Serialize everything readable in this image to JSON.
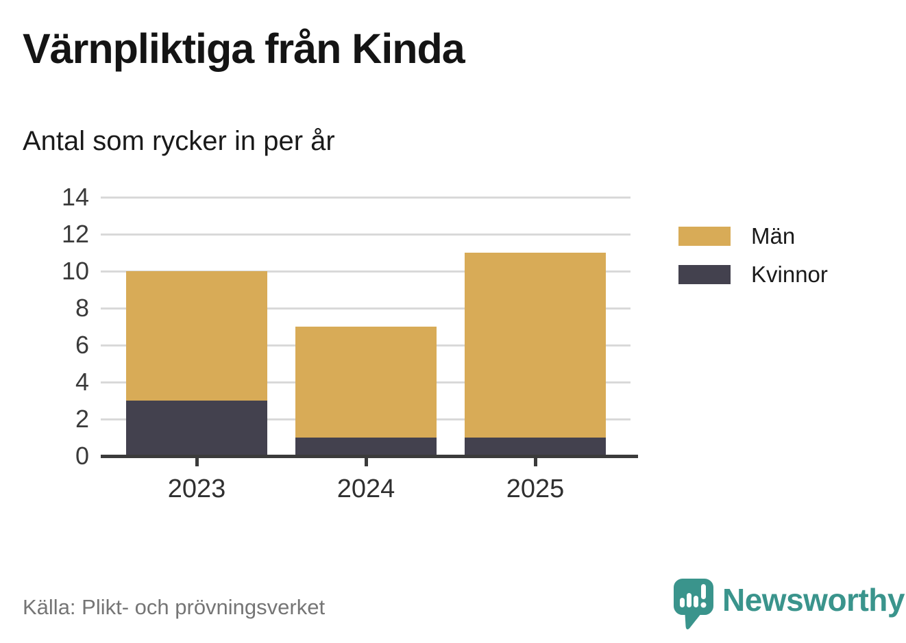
{
  "title": "Värnpliktiga från Kinda",
  "subtitle": "Antal som rycker in per år",
  "source": "Källa: Plikt- och prövningsverket",
  "branding": {
    "name": "Newsworthy",
    "icon": "newsworthy-speech-bubble-bar-chart-icon",
    "color": "#3a948c"
  },
  "colors": {
    "men": "#d8ab57",
    "women": "#43414e",
    "grid": "#d9d9d9",
    "axis": "#3b3b3b",
    "text": "#1a1a1a",
    "muted": "#757575"
  },
  "chart_data": {
    "type": "bar",
    "stacked": true,
    "title": "Värnpliktiga från Kinda",
    "subtitle": "Antal som rycker in per år",
    "categories": [
      "2023",
      "2024",
      "2025"
    ],
    "series": [
      {
        "name": "Män",
        "color": "#d8ab57",
        "values": [
          7,
          6,
          10
        ]
      },
      {
        "name": "Kvinnor",
        "color": "#43414e",
        "values": [
          3,
          1,
          1
        ]
      }
    ],
    "totals": [
      10,
      7,
      11
    ],
    "xlabel": "",
    "ylabel": "",
    "ylim": [
      0,
      14
    ],
    "yticks": [
      0,
      2,
      4,
      6,
      8,
      10,
      12,
      14
    ],
    "grid": true,
    "legend_position": "right",
    "legend": [
      "Män",
      "Kvinnor"
    ],
    "source": "Källa: Plikt- och prövningsverket"
  }
}
